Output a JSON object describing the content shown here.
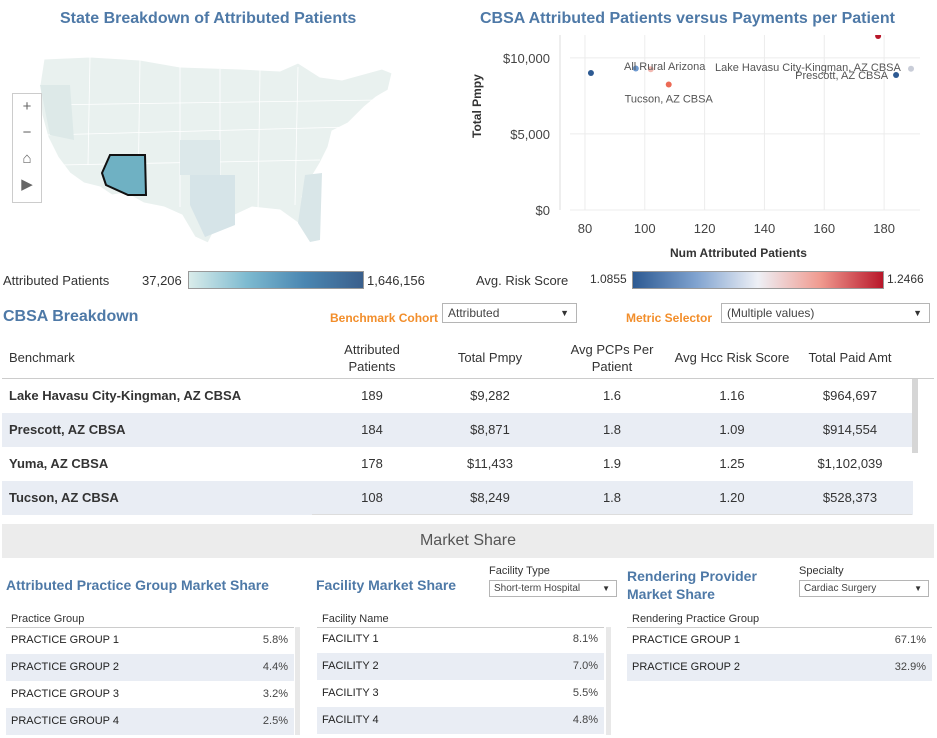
{
  "map_section": {
    "title": "State Breakdown of Attributed Patients",
    "controls": [
      "+",
      "−",
      "⌂",
      "▶"
    ],
    "legend": {
      "label": "Attributed Patients",
      "min": "37,206",
      "max": "1,646,156"
    }
  },
  "scatter_section": {
    "title": "CBSA Attributed Patients versus Payments per Patient",
    "legend": {
      "label": "Avg. Risk Score",
      "min": "1.0855",
      "max": "1.2466"
    },
    "chart_data": {
      "type": "scatter",
      "title": "CBSA Attributed Patients versus Payments per Patient",
      "xlabel": "Num Attributed Patients",
      "ylabel": "Total Pmpy",
      "xlim": [
        75,
        192
      ],
      "ylim": [
        0,
        11500
      ],
      "xticks": [
        "80",
        "100",
        "120",
        "140",
        "160",
        "180"
      ],
      "xtick_values": [
        80,
        100,
        120,
        140,
        160,
        180
      ],
      "yticks": [
        "$0",
        "$5,000",
        "$10,000"
      ],
      "ytick_values": [
        0,
        5000,
        10000
      ],
      "points": [
        {
          "x": 82,
          "y": 9000,
          "color": "#2d5a92",
          "label": ""
        },
        {
          "x": 97,
          "y": 9300,
          "color": "#6f9ad0",
          "label": ""
        },
        {
          "x": 102,
          "y": 9250,
          "color": "#f2b9b2",
          "label": ""
        },
        {
          "x": 108,
          "y": 8249,
          "color": "#ec6a55",
          "label": "Tucson, AZ CBSA"
        },
        {
          "x": 178,
          "y": 11433,
          "color": "#b8172a",
          "label": ""
        },
        {
          "x": 184,
          "y": 8871,
          "color": "#2d5a92",
          "label": "Prescott, AZ CBSA"
        },
        {
          "x": 189,
          "y": 9282,
          "color": "#c9cdd8",
          "label": ""
        }
      ],
      "annotations": [
        "All Rural Arizona",
        "Lake Havasu City-Kingman, AZ CBSA"
      ]
    }
  },
  "cbsa": {
    "title": "CBSA Breakdown",
    "benchmark_label": "Benchmark Cohort",
    "benchmark_value": "Attributed",
    "metric_label": "Metric Selector",
    "metric_value": "(Multiple values)",
    "headers": {
      "benchmark": "Benchmark",
      "patients": "Attributed\nPatients",
      "pmpy": "Total Pmpy",
      "pcps": "Avg PCPs Per\nPatient",
      "risk": "Avg Hcc Risk Score",
      "paid": "Total Paid Amt"
    },
    "rows": [
      {
        "name": "Lake Havasu City-Kingman, AZ CBSA",
        "patients": "189",
        "pmpy": "$9,282",
        "pcps": "1.6",
        "risk": "1.16",
        "paid": "$964,697"
      },
      {
        "name": "Prescott, AZ CBSA",
        "patients": "184",
        "pmpy": "$8,871",
        "pcps": "1.8",
        "risk": "1.09",
        "paid": "$914,554"
      },
      {
        "name": "Yuma, AZ CBSA",
        "patients": "178",
        "pmpy": "$11,433",
        "pcps": "1.9",
        "risk": "1.25",
        "paid": "$1,102,039"
      },
      {
        "name": "Tucson, AZ CBSA",
        "patients": "108",
        "pmpy": "$8,249",
        "pcps": "1.8",
        "risk": "1.20",
        "paid": "$528,373"
      }
    ]
  },
  "market_share": {
    "header": "Market Share",
    "practice": {
      "title": "Attributed Practice Group Market Share",
      "column": "Practice Group",
      "rows": [
        {
          "label": "PRACTICE GROUP 1",
          "value": "5.8%"
        },
        {
          "label": "PRACTICE GROUP 2",
          "value": "4.4%"
        },
        {
          "label": "PRACTICE GROUP 3",
          "value": "3.2%"
        },
        {
          "label": "PRACTICE GROUP 4",
          "value": "2.5%"
        }
      ]
    },
    "facility": {
      "title": "Facility Market Share",
      "filter_label": "Facility Type",
      "filter_value": "Short-term Hospital",
      "column": "Facility Name",
      "rows": [
        {
          "label": "FACILITY 1",
          "value": "8.1%"
        },
        {
          "label": "FACILITY 2",
          "value": "7.0%"
        },
        {
          "label": "FACILITY 3",
          "value": "5.5%"
        },
        {
          "label": "FACILITY 4",
          "value": "4.8%"
        }
      ]
    },
    "provider": {
      "title_line1": "Rendering Provider",
      "title_line2": "Market Share",
      "filter_label": "Specialty",
      "filter_value": "Cardiac Surgery",
      "column": "Rendering Practice Group",
      "rows": [
        {
          "label": "PRACTICE GROUP 1",
          "value": "67.1%"
        },
        {
          "label": "PRACTICE GROUP 2",
          "value": "32.9%"
        }
      ]
    }
  }
}
